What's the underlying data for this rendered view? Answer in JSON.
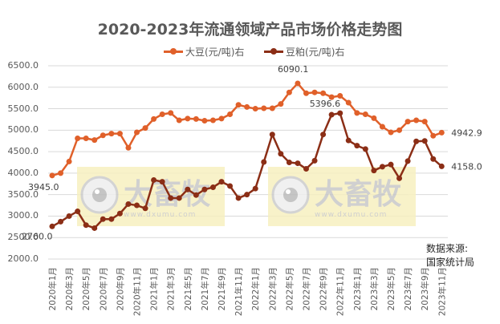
{
  "chart_data": {
    "type": "line",
    "title": "2020-2023年流通领域产品市场价格走势图",
    "xlabel": "",
    "ylabel": "",
    "ylim": [
      2000,
      6500
    ],
    "yticks": [
      "6500.0",
      "6000.0",
      "5500.0",
      "5000.0",
      "4500.0",
      "4000.0",
      "3500.0",
      "3000.0",
      "2500.0",
      "2000.0"
    ],
    "grid": true,
    "legend_position": "top",
    "x": [
      "2020年1月",
      "2020年2月",
      "2020年3月",
      "2020年4月",
      "2020年5月",
      "2020年6月",
      "2020年7月",
      "2020年8月",
      "2020年9月",
      "2020年10月",
      "2020年11月",
      "2020年12月",
      "2021年1月",
      "2021年2月",
      "2021年3月",
      "2021年4月",
      "2021年5月",
      "2021年6月",
      "2021年7月",
      "2021年8月",
      "2021年9月",
      "2021年10月",
      "2021年11月",
      "2021年12月",
      "2022年1月",
      "2022年2月",
      "2022年3月",
      "2022年4月",
      "2022年5月",
      "2022年6月",
      "2022年7月",
      "2022年8月",
      "2022年9月",
      "2022年10月",
      "2022年11月",
      "2022年12月",
      "2023年1月",
      "2023年2月",
      "2023年3月",
      "2023年4月",
      "2023年5月",
      "2023年6月",
      "2023年7月",
      "2023年8月",
      "2023年9月",
      "2023年10月",
      "2023年11月"
    ],
    "xtick_labels": [
      "2020年1月",
      "2020年3月",
      "2020年5月",
      "2020年7月",
      "2020年9月",
      "2020年11月",
      "2021年1月",
      "2021年3月",
      "2021年5月",
      "2021年7月",
      "2021年9月",
      "2021年11月",
      "2022年1月",
      "2022年3月",
      "2022年5月",
      "2022年7月",
      "2022年9月",
      "2022年11月",
      "2023年1月",
      "2023年3月",
      "2023年5月",
      "2023年7月",
      "2023年9月",
      "2023年11月"
    ],
    "series": [
      {
        "name": "大豆(元/吨)右",
        "color": "#e0602a",
        "values": [
          3945.0,
          4000,
          4270,
          4810,
          4810,
          4770,
          4880,
          4920,
          4920,
          4590,
          4950,
          5050,
          5260,
          5370,
          5400,
          5230,
          5270,
          5260,
          5220,
          5230,
          5270,
          5370,
          5590,
          5540,
          5500,
          5510,
          5510,
          5610,
          5880,
          6090.1,
          5860,
          5880,
          5860,
          5770,
          5800,
          5640,
          5400,
          5370,
          5280,
          5080,
          4950,
          5000,
          5200,
          5230,
          5200,
          4870,
          4942.9
        ]
      },
      {
        "name": "豆粕(元/吨)右",
        "color": "#8b2e16",
        "values": [
          2760.0,
          2870,
          3000,
          3110,
          2790,
          2720,
          2930,
          2930,
          3060,
          3280,
          3250,
          3180,
          3840,
          3800,
          3420,
          3420,
          3620,
          3490,
          3620,
          3670,
          3800,
          3700,
          3420,
          3500,
          3640,
          4260,
          4900,
          4450,
          4250,
          4230,
          4100,
          4290,
          4900,
          5360,
          5396.6,
          4760,
          4640,
          4560,
          4060,
          4150,
          4200,
          3880,
          4280,
          4740,
          4750,
          4330,
          4158.0
        ]
      }
    ],
    "annotations": [
      {
        "series": 0,
        "index": 0,
        "text": "3945.0"
      },
      {
        "series": 0,
        "index": 29,
        "text": "6090.1"
      },
      {
        "series": 0,
        "index": 46,
        "text": "4942.9"
      },
      {
        "series": 1,
        "index": 0,
        "text": "2760.0"
      },
      {
        "series": 1,
        "index": 34,
        "text": "5396.6"
      },
      {
        "series": 1,
        "index": 46,
        "text": "4158.0"
      }
    ]
  },
  "legend": {
    "soybean": "大豆(元/吨)右",
    "meal": "豆粕(元/吨)右"
  },
  "source": {
    "line1": "数据来源:",
    "line2": "国家统计局"
  },
  "watermark": {
    "text": "大畜牧",
    "url_text": "www.dxumu.com"
  }
}
